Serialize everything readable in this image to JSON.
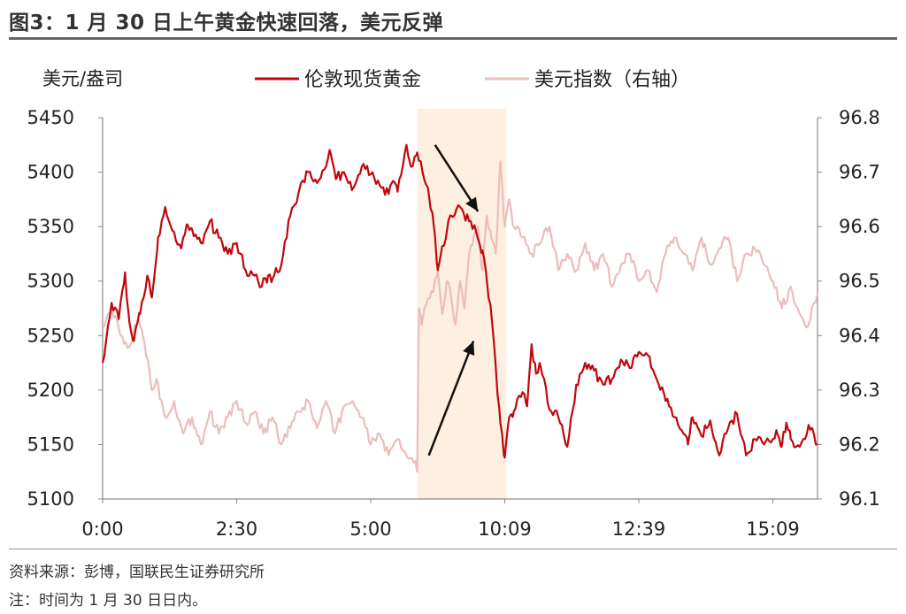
{
  "title": "图3：1 月 30 日上午黄金快速回落，美元反弹",
  "source": "资料来源：彭博，国联民生证券研究所",
  "footnote": "注：时间为 1 月 30 日日内。",
  "colors": {
    "gold": "#c0070c",
    "usd": "#ebbdbd",
    "highlight": "#fdf0e0",
    "axis": "#8a8a8a"
  },
  "chart_data": {
    "type": "line",
    "left_axis_unit": "美元/盎司",
    "x_tick_labels": [
      "0:00",
      "2:30",
      "5:00",
      "10:09",
      "12:39",
      "15:09"
    ],
    "x_tick_index": [
      0,
      150,
      300,
      450,
      600,
      750
    ],
    "x_count": 800,
    "y_left_range": [
      5100,
      5450
    ],
    "y_left_ticks": [
      "5100",
      "5150",
      "5200",
      "5250",
      "5300",
      "5350",
      "5400",
      "5450"
    ],
    "y_right_range": [
      96.1,
      96.8
    ],
    "y_right_ticks": [
      "96.1",
      "96.2",
      "96.3",
      "96.4",
      "96.5",
      "96.6",
      "96.7",
      "96.8"
    ],
    "highlight_index_range": [
      352,
      452
    ],
    "series": [
      {
        "name": "伦敦现货黄金",
        "axis": "left",
        "index": [
          0,
          10,
          18,
          25,
          30,
          35,
          42,
          50,
          55,
          62,
          70,
          80,
          88,
          95,
          100,
          110,
          120,
          130,
          140,
          150,
          160,
          170,
          178,
          185,
          190,
          200,
          210,
          215,
          222,
          230,
          240,
          250,
          255,
          262,
          270,
          275,
          280,
          290,
          300,
          310,
          320,
          325,
          330,
          340,
          345,
          352,
          358,
          365,
          370,
          375,
          380,
          385,
          390,
          400,
          410,
          418,
          425,
          430,
          435,
          440,
          445,
          450,
          455,
          460,
          470,
          475,
          480,
          485,
          490,
          500,
          510,
          520,
          530,
          540,
          550,
          560,
          570,
          580,
          590,
          600,
          610,
          620,
          630,
          640,
          650,
          655,
          660,
          670,
          680,
          690,
          700,
          710,
          720,
          730,
          740,
          750,
          755,
          760,
          765,
          770,
          780,
          790,
          800
        ],
        "values": [
          5225,
          5280,
          5265,
          5308,
          5262,
          5245,
          5270,
          5305,
          5285,
          5340,
          5368,
          5345,
          5330,
          5352,
          5348,
          5335,
          5355,
          5340,
          5325,
          5335,
          5310,
          5305,
          5295,
          5305,
          5302,
          5315,
          5360,
          5370,
          5390,
          5400,
          5390,
          5405,
          5418,
          5395,
          5400,
          5390,
          5385,
          5405,
          5398,
          5388,
          5380,
          5392,
          5382,
          5425,
          5405,
          5418,
          5400,
          5380,
          5355,
          5310,
          5332,
          5345,
          5360,
          5368,
          5355,
          5345,
          5328,
          5300,
          5270,
          5220,
          5170,
          5138,
          5175,
          5180,
          5198,
          5185,
          5242,
          5215,
          5222,
          5182,
          5175,
          5148,
          5205,
          5225,
          5218,
          5205,
          5210,
          5228,
          5220,
          5235,
          5232,
          5210,
          5190,
          5175,
          5160,
          5150,
          5175,
          5158,
          5172,
          5140,
          5165,
          5178,
          5140,
          5155,
          5150,
          5155,
          5160,
          5148,
          5170,
          5155,
          5148,
          5168,
          5150
        ]
      },
      {
        "name": "美元指数（右轴）",
        "axis": "right",
        "index": [
          0,
          10,
          20,
          30,
          40,
          45,
          50,
          55,
          60,
          70,
          80,
          90,
          100,
          110,
          120,
          130,
          140,
          150,
          160,
          170,
          180,
          190,
          200,
          210,
          220,
          230,
          240,
          250,
          260,
          270,
          280,
          290,
          300,
          310,
          320,
          330,
          340,
          350,
          352,
          354,
          357,
          360,
          370,
          375,
          380,
          385,
          390,
          395,
          400,
          405,
          410,
          420,
          425,
          430,
          435,
          440,
          445,
          450,
          455,
          460,
          470,
          480,
          490,
          500,
          510,
          520,
          530,
          540,
          550,
          560,
          570,
          580,
          590,
          600,
          610,
          620,
          630,
          640,
          650,
          660,
          670,
          680,
          690,
          700,
          710,
          720,
          730,
          740,
          750,
          760,
          770,
          780,
          790,
          800
        ],
        "values": [
          96.42,
          96.45,
          96.4,
          96.38,
          96.43,
          96.4,
          96.36,
          96.3,
          96.32,
          96.25,
          96.28,
          96.22,
          96.25,
          96.2,
          96.26,
          96.22,
          96.25,
          96.28,
          96.24,
          96.26,
          96.22,
          96.25,
          96.2,
          96.23,
          96.26,
          96.28,
          96.23,
          96.28,
          96.22,
          96.27,
          96.28,
          96.25,
          96.2,
          96.22,
          96.18,
          96.21,
          96.18,
          96.17,
          96.15,
          96.45,
          96.42,
          96.45,
          96.48,
          96.52,
          96.44,
          96.5,
          96.47,
          96.42,
          96.5,
          96.45,
          96.55,
          96.6,
          96.52,
          96.62,
          96.58,
          96.55,
          96.72,
          96.6,
          96.65,
          96.6,
          96.58,
          96.55,
          96.57,
          96.6,
          96.52,
          96.55,
          96.52,
          96.57,
          96.52,
          96.55,
          96.49,
          96.53,
          96.55,
          96.5,
          96.52,
          96.48,
          96.55,
          96.58,
          96.55,
          96.52,
          96.58,
          96.53,
          96.56,
          96.58,
          96.5,
          96.55,
          96.56,
          96.53,
          96.5,
          96.45,
          96.49,
          96.44,
          96.42,
          96.48
        ]
      }
    ],
    "annotations": [
      {
        "type": "arrow",
        "from_index": 372,
        "from_value": 5425,
        "to_index": 420,
        "to_value": 5364,
        "axis": "left"
      },
      {
        "type": "arrow",
        "from_index": 365,
        "from_value": 5140,
        "to_index": 415,
        "to_value": 5245,
        "axis": "left"
      }
    ]
  }
}
